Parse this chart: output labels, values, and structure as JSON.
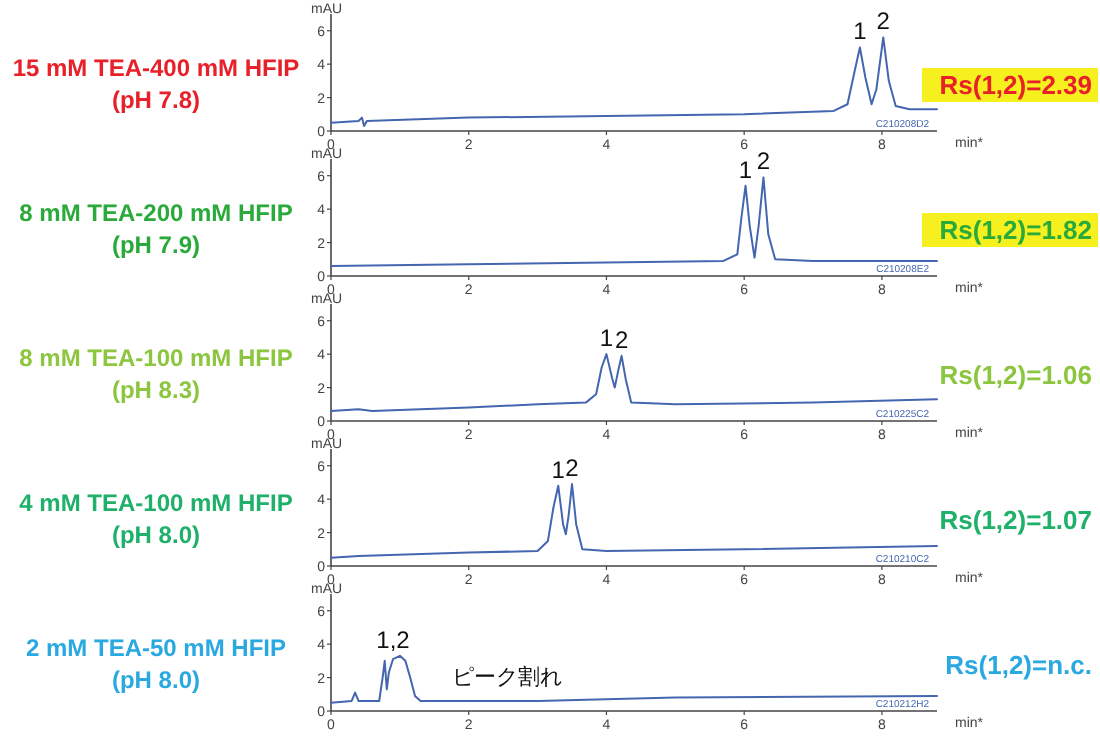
{
  "chart_data": [
    {
      "type": "line",
      "title": "15 mM TEA-400 mM HFIP",
      "subtitle": "(pH 7.8)",
      "xlabel": "min*",
      "ylabel": "mAU",
      "xlim": [
        0,
        8.8
      ],
      "xticks": [
        0,
        2,
        4,
        6,
        8
      ],
      "ylim": [
        0,
        7
      ],
      "yticks": [
        0,
        2,
        4,
        6
      ],
      "grid": false,
      "x": [
        0,
        0.4,
        0.45,
        0.48,
        0.52,
        2,
        4,
        6,
        7.3,
        7.5,
        7.6,
        7.68,
        7.76,
        7.85,
        7.92,
        8.02,
        8.1,
        8.2,
        8.4,
        8.8
      ],
      "series": [
        {
          "color": "#4466b0",
          "values": [
            0.5,
            0.6,
            0.8,
            0.3,
            0.6,
            0.8,
            0.9,
            1.0,
            1.2,
            1.6,
            3.5,
            5.0,
            3.2,
            1.6,
            2.5,
            5.6,
            3.0,
            1.5,
            1.3,
            1.3
          ]
        }
      ],
      "annotations": [
        {
          "text": "1",
          "x": 7.68,
          "y": 5.0
        },
        {
          "text": "2",
          "x": 8.02,
          "y": 5.6
        },
        "Rs(1,2)=2.39",
        "C210208D2"
      ]
    },
    {
      "type": "line",
      "title": "8 mM TEA-200 mM HFIP",
      "subtitle": "(pH 7.9)",
      "xlabel": "min*",
      "ylabel": "mAU",
      "xlim": [
        0,
        8.8
      ],
      "xticks": [
        0,
        2,
        4,
        6,
        8
      ],
      "ylim": [
        0,
        7
      ],
      "yticks": [
        0,
        2,
        4,
        6
      ],
      "grid": false,
      "x": [
        0,
        2,
        4,
        5.7,
        5.9,
        5.96,
        6.02,
        6.08,
        6.15,
        6.21,
        6.28,
        6.35,
        6.45,
        7,
        8.8
      ],
      "series": [
        {
          "color": "#4466b0",
          "values": [
            0.6,
            0.7,
            0.8,
            0.9,
            1.3,
            3.5,
            5.4,
            3.0,
            1.1,
            3.0,
            5.9,
            2.5,
            1.0,
            0.9,
            0.9
          ]
        }
      ],
      "annotations": [
        {
          "text": "1",
          "x": 6.02,
          "y": 5.4
        },
        {
          "text": "2",
          "x": 6.28,
          "y": 5.9
        },
        "Rs(1,2)=1.82",
        "C210208E2"
      ]
    },
    {
      "type": "line",
      "title": "8 mM TEA-100 mM HFIP",
      "subtitle": "(pH 8.3)",
      "xlabel": "min*",
      "ylabel": "mAU",
      "xlim": [
        0,
        8.8
      ],
      "xticks": [
        0,
        2,
        4,
        6,
        8
      ],
      "ylim": [
        0,
        7
      ],
      "yticks": [
        0,
        2,
        4,
        6
      ],
      "grid": false,
      "x": [
        0,
        0.4,
        0.6,
        2,
        3,
        3.7,
        3.85,
        3.93,
        4.0,
        4.08,
        4.12,
        4.17,
        4.22,
        4.28,
        4.36,
        5,
        7,
        8.8
      ],
      "series": [
        {
          "color": "#4466b0",
          "values": [
            0.6,
            0.7,
            0.6,
            0.8,
            1.0,
            1.1,
            1.6,
            3.2,
            4.0,
            2.6,
            2.0,
            3.0,
            3.9,
            2.5,
            1.1,
            1.0,
            1.1,
            1.3
          ]
        }
      ],
      "annotations": [
        {
          "text": "1",
          "x": 4.0,
          "y": 4.0
        },
        {
          "text": "2",
          "x": 4.22,
          "y": 3.9
        },
        "Rs(1,2)=1.06",
        "C210225C2"
      ]
    },
    {
      "type": "line",
      "title": "4 mM TEA-100 mM HFIP",
      "subtitle": "(pH 8.0)",
      "xlabel": "min*",
      "ylabel": "mAU",
      "xlim": [
        0,
        8.8
      ],
      "xticks": [
        0,
        2,
        4,
        6,
        8
      ],
      "ylim": [
        0,
        7
      ],
      "yticks": [
        0,
        2,
        4,
        6
      ],
      "grid": false,
      "x": [
        0,
        0.4,
        2,
        3.0,
        3.15,
        3.23,
        3.3,
        3.37,
        3.41,
        3.45,
        3.5,
        3.56,
        3.65,
        4,
        6,
        8.8
      ],
      "series": [
        {
          "color": "#4466b0",
          "values": [
            0.5,
            0.6,
            0.8,
            0.9,
            1.5,
            3.5,
            4.8,
            2.5,
            1.9,
            3.0,
            4.9,
            2.5,
            1.0,
            0.9,
            1.0,
            1.2
          ]
        }
      ],
      "annotations": [
        {
          "text": "1",
          "x": 3.3,
          "y": 4.8
        },
        {
          "text": "2",
          "x": 3.5,
          "y": 4.9
        },
        "Rs(1,2)=1.07",
        "C210210C2"
      ]
    },
    {
      "type": "line",
      "title": "2 mM TEA-50 mM HFIP",
      "subtitle": "(pH 8.0)",
      "xlabel": "min*",
      "ylabel": "mAU",
      "xlim": [
        0,
        8.8
      ],
      "xticks": [
        0,
        2,
        4,
        6,
        8
      ],
      "ylim": [
        0,
        7
      ],
      "yticks": [
        0,
        2,
        4,
        6
      ],
      "grid": false,
      "x": [
        0,
        0.3,
        0.35,
        0.4,
        0.7,
        0.75,
        0.78,
        0.81,
        0.84,
        0.9,
        1.0,
        1.08,
        1.15,
        1.22,
        1.3,
        3,
        5,
        8.8
      ],
      "series": [
        {
          "color": "#4466b0",
          "values": [
            0.5,
            0.6,
            1.1,
            0.6,
            0.6,
            2.0,
            3.0,
            1.3,
            2.3,
            3.1,
            3.3,
            3.0,
            2.0,
            0.9,
            0.6,
            0.6,
            0.8,
            0.9
          ]
        }
      ],
      "annotations": [
        {
          "text": "1,2",
          "x": 0.9,
          "y": 3.3
        },
        "Rs(1,2)=n.c.",
        "C210212H2",
        "ピーク割れ"
      ]
    }
  ]
}
